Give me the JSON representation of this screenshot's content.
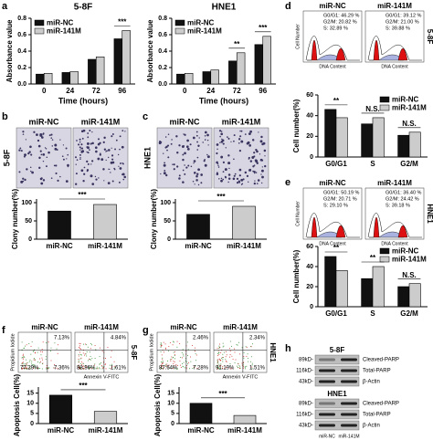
{
  "panel_labels": [
    "a",
    "b",
    "c",
    "d",
    "e",
    "f",
    "g",
    "h"
  ],
  "chart_data": [
    {
      "type": "bar",
      "title": "5-8F",
      "y_label": "Absorbance value",
      "x_label": "Time (hours)",
      "categories": [
        "0",
        "24",
        "72",
        "96"
      ],
      "series": [
        {
          "name": "miR-NC",
          "color": "#111111",
          "values": [
            0.12,
            0.14,
            0.3,
            0.55
          ]
        },
        {
          "name": "miR-141M",
          "color": "#cccccc",
          "values": [
            0.13,
            0.15,
            0.33,
            0.65
          ]
        }
      ],
      "ylim": [
        0,
        0.8
      ],
      "yticks": [
        {
          "value": 0,
          "label": "0.0"
        },
        0.2,
        0.4,
        0.6,
        0.8
      ],
      "legend": "upper left",
      "annotations": [
        null,
        null,
        null,
        "***"
      ]
    },
    {
      "type": "bar",
      "title": "HNE1",
      "y_label": "Absorbance value",
      "x_label": "Time (hours)",
      "categories": [
        "0",
        "24",
        "72",
        "96"
      ],
      "series": [
        {
          "name": "miR-NC",
          "color": "#111111",
          "values": [
            0.12,
            0.15,
            0.28,
            0.48
          ]
        },
        {
          "name": "miR-141M",
          "color": "#cccccc",
          "values": [
            0.13,
            0.17,
            0.38,
            0.58
          ]
        }
      ],
      "ylim": [
        0,
        0.8
      ],
      "yticks": [
        {
          "value": 0,
          "label": "0.0"
        },
        0.2,
        0.4,
        0.6,
        0.8
      ],
      "legend": "upper left",
      "annotations": [
        null,
        null,
        "**",
        "***"
      ]
    },
    {
      "type": "bar",
      "y_label": "Clony number(%)",
      "categories": [
        "miR-NC",
        "miR-141M"
      ],
      "values": [
        77,
        95
      ],
      "colors": [
        "#111111",
        "#cccccc"
      ],
      "ylim": [
        0,
        110
      ],
      "yticks": [
        0,
        50,
        100
      ],
      "annotation": "***"
    },
    {
      "type": "bar",
      "y_label": "Clony number(%)",
      "categories": [
        "miR-NC",
        "miR-141M"
      ],
      "values": [
        68,
        90
      ],
      "colors": [
        "#111111",
        "#cccccc"
      ],
      "ylim": [
        0,
        110
      ],
      "yticks": [
        0,
        50,
        100
      ],
      "annotation": "***"
    },
    {
      "type": "bar",
      "y_label": "Cell number(%)",
      "categories": [
        "G0/G1",
        "S",
        "G2/M"
      ],
      "series": [
        {
          "name": "miR-NC",
          "color": "#111111",
          "values": [
            46,
            32,
            21
          ]
        },
        {
          "name": "miR-141M",
          "color": "#cccccc",
          "values": [
            38,
            38,
            24
          ]
        }
      ],
      "ylim": [
        0,
        60
      ],
      "yticks": [
        0,
        20,
        40,
        60
      ],
      "legend": "upper right",
      "annotations": [
        "**",
        "N.S.",
        "N.S."
      ]
    },
    {
      "type": "bar",
      "y_label": "Cell number(%)",
      "categories": [
        "G0/G1",
        "S",
        "G2/M"
      ],
      "series": [
        {
          "name": "miR-NC",
          "color": "#111111",
          "values": [
            50,
            28,
            20
          ]
        },
        {
          "name": "miR-141M",
          "color": "#cccccc",
          "values": [
            36,
            40,
            23
          ]
        }
      ],
      "ylim": [
        0,
        60
      ],
      "yticks": [
        0,
        20,
        40,
        60
      ],
      "legend": "upper right",
      "annotations": [
        "**",
        "**",
        "N.S."
      ]
    },
    {
      "type": "bar",
      "y_label": "Apoptosis Cell(%)",
      "categories": [
        "miR-NC",
        "miR-141M"
      ],
      "values": [
        14,
        6
      ],
      "colors": [
        "#111111",
        "#cccccc"
      ],
      "ylim": [
        0,
        18
      ],
      "yticks": [
        0,
        5,
        10,
        15
      ],
      "annotation": "***"
    },
    {
      "type": "bar",
      "y_label": "Apoptosis Cell(%)",
      "categories": [
        "miR-NC",
        "miR-141M"
      ],
      "values": [
        10,
        4
      ],
      "colors": [
        "#111111",
        "#cccccc"
      ],
      "ylim": [
        0,
        18
      ],
      "yticks": [
        0,
        5,
        10,
        15
      ],
      "annotation": "***"
    }
  ],
  "colony": [
    {
      "side": "5-8F",
      "titles": [
        "miR-NC",
        "miR-141M"
      ]
    },
    {
      "side": "HNE1",
      "titles": [
        "miR-NC",
        "miR-141M"
      ]
    }
  ],
  "cell_cycle": [
    {
      "side": "5-8F",
      "y_label": "Cell Number",
      "x_label": "DNA Content",
      "plots": [
        {
          "title": "miR-NC",
          "lines": [
            "G0/G1: 46.29 %",
            "G2/M: 20.82 %",
            "S: 32.89 %"
          ]
        },
        {
          "title": "miR-141M",
          "lines": [
            "G0/G1: 39.12 %",
            "G2/M: 21.00 %",
            "S: 39.88 %"
          ]
        }
      ]
    },
    {
      "side": "HNE1",
      "y_label": "Cell Number",
      "x_label": "DNA Content",
      "plots": [
        {
          "title": "miR-NC",
          "lines": [
            "G0/G1: 50.19 %",
            "G2/M: 20.71 %",
            "S: 29.10 %"
          ]
        },
        {
          "title": "miR-141M",
          "lines": [
            "G0/G1: 36.40 %",
            "G2/M: 24.42 %",
            "S: 39.18 %"
          ]
        }
      ]
    }
  ],
  "apoptosis": [
    {
      "side": "5-8F",
      "y_label": "Propidium Iodide",
      "x_label": "Annexin V-FITC",
      "plots": [
        {
          "title": "miR-NC",
          "upper_right": "7.13%",
          "lower_left": "77.29%",
          "lower_right": "7.36%"
        },
        {
          "title": "miR-141M",
          "upper_right": "4.84%",
          "lower_left": "88.96%",
          "lower_right": "1.61%"
        }
      ]
    },
    {
      "side": "HNE1",
      "y_label": "Propidium Iodide",
      "x_label": "Annexin V-FITC",
      "plots": [
        {
          "title": "miR-NC",
          "upper_right": "2.46%",
          "lower_left": "87.64%",
          "lower_right": "7.28%"
        },
        {
          "title": "miR-141M",
          "upper_right": "2.34%",
          "lower_left": "91.19%",
          "lower_right": "1.51%"
        }
      ]
    }
  ],
  "western": {
    "blocks": [
      {
        "title": "5-8F",
        "rows": [
          {
            "size": "89kD-",
            "name": "Cleaved-PARP"
          },
          {
            "size": "116kD-",
            "name": "Total-PARP"
          },
          {
            "size": "43kD-",
            "name": "β-Actin"
          }
        ]
      },
      {
        "title": "HNE1",
        "rows": [
          {
            "size": "89kD-",
            "name": "Cleaved-PARP"
          },
          {
            "size": "116kD-",
            "name": "Total-PARP"
          },
          {
            "size": "43kD-",
            "name": "β-Actin"
          }
        ]
      }
    ],
    "lanes": [
      "miR-NC",
      "miR-141M"
    ]
  }
}
